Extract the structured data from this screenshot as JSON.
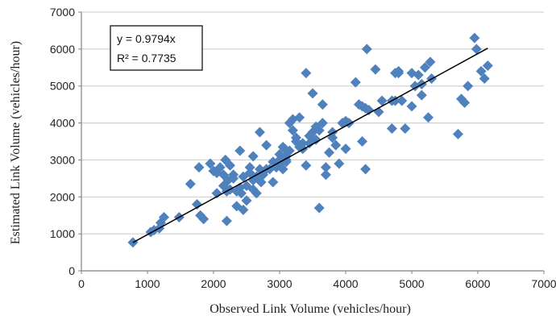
{
  "chart_data": {
    "type": "scatter",
    "xlabel": "Observed Link Volume (vehicles/hour)",
    "ylabel": "Estimated Link Volume (vehicles/hour)",
    "xlim": [
      0,
      7000
    ],
    "ylim": [
      0,
      7000
    ],
    "xticks": [
      0,
      1000,
      2000,
      3000,
      4000,
      5000,
      6000,
      7000
    ],
    "yticks": [
      0,
      1000,
      2000,
      3000,
      4000,
      5000,
      6000,
      7000
    ],
    "grid": "horizontal",
    "legend": "none",
    "colors": {
      "marker": "#4F81BD",
      "trendline": "#000000",
      "grid": "#C8C8C8"
    },
    "annotation": {
      "equation": "y = 0.9794x",
      "r_squared": "R² = 0.7735",
      "position": "top-left"
    },
    "trendline": {
      "slope": 0.9794,
      "intercept": 0,
      "x_range": [
        780,
        6150
      ]
    },
    "points": [
      [
        780,
        770
      ],
      [
        1050,
        1050
      ],
      [
        1100,
        1100
      ],
      [
        1180,
        1150
      ],
      [
        1200,
        1300
      ],
      [
        1250,
        1450
      ],
      [
        1480,
        1450
      ],
      [
        1650,
        2350
      ],
      [
        1750,
        1800
      ],
      [
        1780,
        2800
      ],
      [
        1800,
        1500
      ],
      [
        1850,
        1400
      ],
      [
        1950,
        2900
      ],
      [
        2000,
        2700
      ],
      [
        2050,
        2100
      ],
      [
        2100,
        2800
      ],
      [
        2150,
        2300
      ],
      [
        2180,
        3000
      ],
      [
        2200,
        1350
      ],
      [
        2220,
        2450
      ],
      [
        2250,
        2200
      ],
      [
        2300,
        2600
      ],
      [
        2350,
        1750
      ],
      [
        2400,
        3250
      ],
      [
        2420,
        2100
      ],
      [
        2450,
        1650
      ],
      [
        2500,
        1900
      ],
      [
        2550,
        2800
      ],
      [
        2600,
        3100
      ],
      [
        2650,
        2100
      ],
      [
        2700,
        3750
      ],
      [
        2720,
        2400
      ],
      [
        2750,
        2600
      ],
      [
        2800,
        3400
      ],
      [
        2850,
        2750
      ],
      [
        2900,
        2400
      ],
      [
        2950,
        2800
      ],
      [
        3000,
        3000
      ],
      [
        3050,
        2750
      ],
      [
        3080,
        3300
      ],
      [
        3100,
        2950
      ],
      [
        3150,
        4000
      ],
      [
        3200,
        4100
      ],
      [
        3250,
        3500
      ],
      [
        3300,
        4150
      ],
      [
        3350,
        3300
      ],
      [
        3400,
        5350
      ],
      [
        3450,
        3650
      ],
      [
        3500,
        4800
      ],
      [
        3550,
        3900
      ],
      [
        3600,
        1700
      ],
      [
        3650,
        4500
      ],
      [
        3700,
        2600
      ],
      [
        3750,
        3200
      ],
      [
        3800,
        3600
      ],
      [
        3850,
        3400
      ],
      [
        3900,
        2900
      ],
      [
        3950,
        4000
      ],
      [
        4000,
        3300
      ],
      [
        4050,
        4000
      ],
      [
        4150,
        5100
      ],
      [
        4200,
        4500
      ],
      [
        4250,
        3500
      ],
      [
        4300,
        4400
      ],
      [
        4320,
        6000
      ],
      [
        4350,
        4350
      ],
      [
        4450,
        5450
      ],
      [
        4500,
        4300
      ],
      [
        4550,
        4600
      ],
      [
        4700,
        4600
      ],
      [
        4750,
        5350
      ],
      [
        4800,
        5400
      ],
      [
        4850,
        4600
      ],
      [
        4900,
        3850
      ],
      [
        5000,
        4450
      ],
      [
        5050,
        5000
      ],
      [
        5100,
        5300
      ],
      [
        5150,
        4750
      ],
      [
        5200,
        5500
      ],
      [
        5250,
        4150
      ],
      [
        5280,
        5650
      ],
      [
        5300,
        5200
      ],
      [
        5700,
        3700
      ],
      [
        5750,
        4650
      ],
      [
        5800,
        4550
      ],
      [
        5850,
        5000
      ],
      [
        5950,
        6300
      ],
      [
        5980,
        6000
      ],
      [
        6050,
        5400
      ],
      [
        6100,
        5200
      ],
      [
        6150,
        5550
      ],
      [
        2050,
        2650
      ],
      [
        2150,
        2600
      ],
      [
        2250,
        2850
      ],
      [
        2300,
        2500
      ],
      [
        2450,
        2550
      ],
      [
        2500,
        2300
      ],
      [
        2550,
        2650
      ],
      [
        2600,
        2200
      ],
      [
        2650,
        2550
      ],
      [
        2700,
        2750
      ],
      [
        2800,
        2750
      ],
      [
        2900,
        2950
      ],
      [
        3000,
        3150
      ],
      [
        3050,
        3350
      ],
      [
        3100,
        3100
      ],
      [
        3150,
        3250
      ],
      [
        3200,
        3800
      ],
      [
        3250,
        3600
      ],
      [
        3300,
        3350
      ],
      [
        3350,
        3450
      ],
      [
        3400,
        2850
      ],
      [
        3450,
        3450
      ],
      [
        3500,
        3750
      ],
      [
        3550,
        3550
      ],
      [
        3600,
        3800
      ],
      [
        3650,
        4000
      ],
      [
        3700,
        2800
      ],
      [
        3800,
        3750
      ],
      [
        4000,
        4050
      ],
      [
        4250,
        4450
      ],
      [
        4300,
        2750
      ],
      [
        4700,
        3850
      ],
      [
        4750,
        4600
      ],
      [
        4800,
        5350
      ],
      [
        5000,
        5350
      ],
      [
        5150,
        5050
      ],
      [
        2400,
        2250
      ],
      [
        2350,
        2150
      ],
      [
        2200,
        2150
      ],
      [
        2600,
        2450
      ],
      [
        3000,
        2900
      ],
      [
        3100,
        3000
      ]
    ]
  }
}
